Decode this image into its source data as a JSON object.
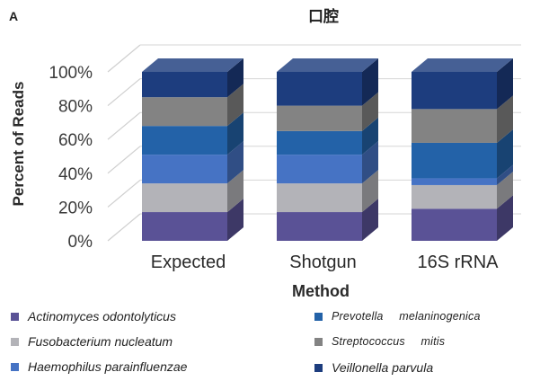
{
  "panel_label": "A",
  "chart_data": {
    "type": "bar",
    "stacked": true,
    "three_d": true,
    "title": "口腔",
    "xlabel": "Method",
    "ylabel": "Percent of Reads",
    "ylim": [
      0,
      100
    ],
    "yticks": [
      "0%",
      "20%",
      "40%",
      "60%",
      "80%",
      "100%"
    ],
    "categories": [
      "Expected",
      "Shotgun",
      "16S rRNA"
    ],
    "series": [
      {
        "name": "Actinomyces odontolyticus",
        "color": "#5a5296",
        "values": [
          17,
          17,
          19
        ]
      },
      {
        "name": "Fusobacterium nucleatum",
        "color": "#b3b3b8",
        "values": [
          17,
          17,
          14
        ]
      },
      {
        "name": "Haemophilus parainfluenzae",
        "color": "#4673c4",
        "values": [
          17,
          17,
          4
        ]
      },
      {
        "name": "Prevotella melaninogenica",
        "color": "#2362a8",
        "values": [
          17,
          14,
          21
        ]
      },
      {
        "name": "Streptococcus mitis",
        "color": "#838383",
        "values": [
          17,
          15,
          20
        ]
      },
      {
        "name": "Veillonella parvula",
        "color": "#1d3d7e",
        "values": [
          15,
          20,
          22
        ]
      }
    ],
    "legend_position": "bottom",
    "grid": true
  },
  "legend": {
    "items": [
      {
        "label": "Actinomyces odontolyticus",
        "color": "#5a5296"
      },
      {
        "label": "Fusobacterium nucleatum",
        "color": "#b3b3b8"
      },
      {
        "label": "Haemophilus parainfluenzae",
        "color": "#4673c4"
      },
      {
        "label": "Prevotella melaninogenica",
        "color": "#2362a8"
      },
      {
        "label": "Streptococcus mitis",
        "color": "#838383"
      },
      {
        "label": "Veillonella parvula",
        "color": "#1d3d7e"
      }
    ]
  }
}
